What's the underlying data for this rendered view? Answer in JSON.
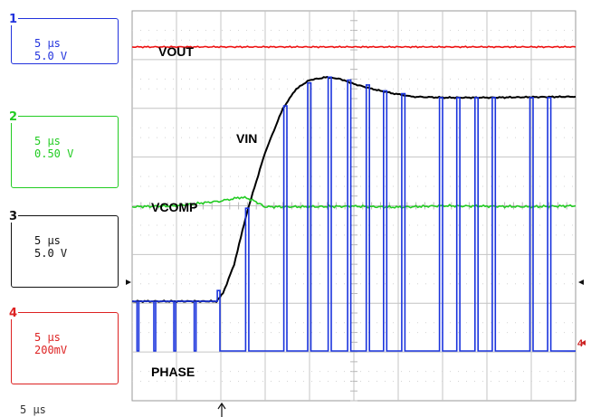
{
  "channels": [
    {
      "number": "1",
      "time_div": "5 μs",
      "volt_div": "5.0 V",
      "color": "#2233dd"
    },
    {
      "number": "2",
      "time_div": "5 μs",
      "volt_div": "0.50 V",
      "color": "#22cc22"
    },
    {
      "number": "3",
      "time_div": "5 μs",
      "volt_div": "5.0 V",
      "color": "#111111"
    },
    {
      "number": "4",
      "time_div": "5 μs",
      "volt_div": "200mV",
      "color": "#dd2222"
    }
  ],
  "timebase": "5 μs",
  "trigger_level_marker": "4",
  "chart_data": {
    "type": "line",
    "x_unit": "div",
    "y_unit": "div",
    "grid": true,
    "x_range": [
      0,
      10
    ],
    "y_range": [
      0,
      8
    ],
    "series": [
      {
        "name": "VOUT",
        "color": "#ee1111",
        "x": [
          0,
          10
        ],
        "y": [
          7.26,
          7.26
        ]
      },
      {
        "name": "VIN",
        "color": "#000000",
        "x": [
          0,
          1.0,
          1.9,
          2.05,
          2.3,
          2.6,
          3.0,
          3.4,
          3.7,
          4.0,
          4.4,
          4.7,
          5.0,
          5.4,
          5.8,
          6.3,
          7.0,
          8.0,
          10
        ],
        "y": [
          2.04,
          2.04,
          2.04,
          2.2,
          2.8,
          3.9,
          5.1,
          6.0,
          6.4,
          6.58,
          6.64,
          6.6,
          6.5,
          6.4,
          6.32,
          6.24,
          6.22,
          6.22,
          6.24
        ]
      },
      {
        "name": "VCOMP",
        "color": "#22cc22",
        "x": [
          0,
          1.0,
          2.0,
          2.5,
          2.75,
          3.0,
          4.0,
          5.0,
          6.0,
          7.0,
          8.0,
          9.0,
          10
        ],
        "y": [
          3.98,
          4.0,
          4.1,
          4.18,
          4.1,
          3.98,
          3.98,
          3.99,
          3.97,
          4.0,
          3.99,
          3.98,
          4.0
        ]
      },
      {
        "name": "PHASE",
        "color": "#1a33dd",
        "low": 1.02,
        "high": 2.04,
        "pulses": [
          {
            "x": 0.05,
            "w": 0.06,
            "top": 2.04
          },
          {
            "x": 0.43,
            "w": 0.06,
            "top": 2.04
          },
          {
            "x": 0.88,
            "w": 0.06,
            "top": 2.04
          },
          {
            "x": 1.34,
            "w": 0.06,
            "top": 2.04
          },
          {
            "x": 1.92,
            "w": 0.06,
            "top": 2.26
          },
          {
            "x": 2.56,
            "w": 0.07,
            "top": 3.95
          },
          {
            "x": 3.42,
            "w": 0.07,
            "top": 6.05
          },
          {
            "x": 3.96,
            "w": 0.07,
            "top": 6.52
          },
          {
            "x": 4.42,
            "w": 0.07,
            "top": 6.64
          },
          {
            "x": 4.86,
            "w": 0.07,
            "top": 6.58
          },
          {
            "x": 5.28,
            "w": 0.07,
            "top": 6.48
          },
          {
            "x": 5.67,
            "w": 0.07,
            "top": 6.36
          },
          {
            "x": 6.08,
            "w": 0.07,
            "top": 6.3
          },
          {
            "x": 6.93,
            "w": 0.07,
            "top": 6.22
          },
          {
            "x": 7.32,
            "w": 0.07,
            "top": 6.22
          },
          {
            "x": 7.73,
            "w": 0.07,
            "top": 6.22
          },
          {
            "x": 8.12,
            "w": 0.07,
            "top": 6.22
          },
          {
            "x": 8.97,
            "w": 0.07,
            "top": 6.22
          },
          {
            "x": 9.37,
            "w": 0.07,
            "top": 6.22
          }
        ]
      }
    ],
    "labels": [
      {
        "text": "VOUT",
        "series": "VOUT"
      },
      {
        "text": "VIN",
        "series": "VIN"
      },
      {
        "text": "VCOMP",
        "series": "VCOMP"
      },
      {
        "text": "PHASE",
        "series": "PHASE"
      }
    ]
  }
}
